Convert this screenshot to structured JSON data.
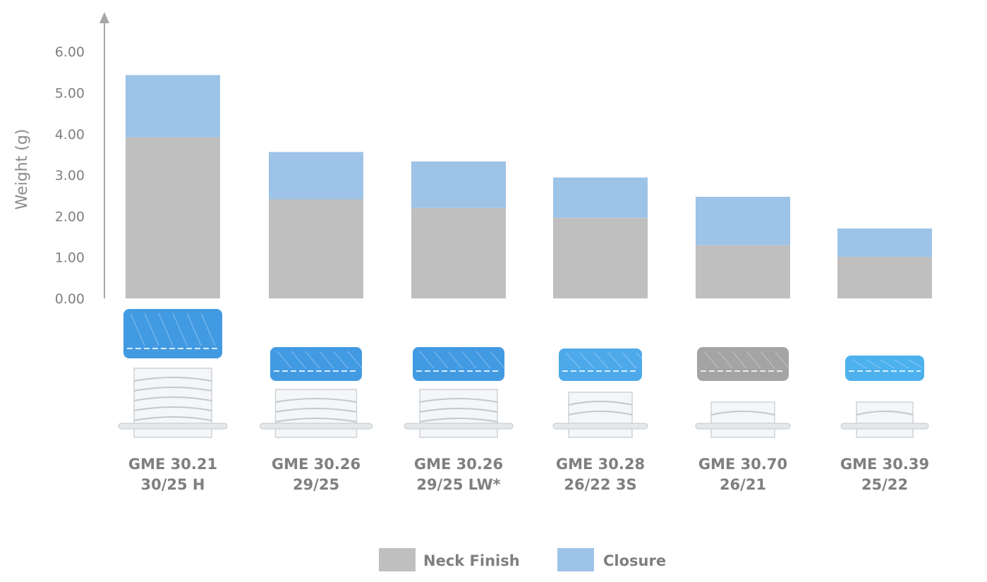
{
  "chart_data": {
    "type": "bar",
    "stacked": true,
    "title": "",
    "xlabel": "",
    "ylabel": "Weight (g)",
    "ylim": [
      0,
      6
    ],
    "yticks": [
      "0.00",
      "1.00",
      "2.00",
      "3.00",
      "4.00",
      "5.00",
      "6.00"
    ],
    "grid": false,
    "legend_position": "bottom",
    "categories": [
      [
        "GME 30.21",
        "30/25 H"
      ],
      [
        "GME 30.26",
        "29/25"
      ],
      [
        "GME 30.26",
        "29/25 LW*"
      ],
      [
        "GME 30.28",
        "26/22 3S"
      ],
      [
        "GME 30.70",
        "26/21"
      ],
      [
        "GME 30.39",
        "25/22"
      ]
    ],
    "series": [
      {
        "name": "Neck Finish",
        "color": "#bfbfbf",
        "values": [
          3.92,
          2.41,
          2.2,
          1.96,
          1.29,
          1.01
        ]
      },
      {
        "name": "Closure",
        "color": "#9dc3e6",
        "values": [
          1.51,
          1.15,
          1.13,
          0.98,
          1.18,
          0.69
        ]
      }
    ],
    "closure_colors": [
      "#2e8fe0",
      "#2e8fe0",
      "#2e8fe0",
      "#3aa0e8",
      "#9a9a9a",
      "#3aa8ec"
    ]
  }
}
